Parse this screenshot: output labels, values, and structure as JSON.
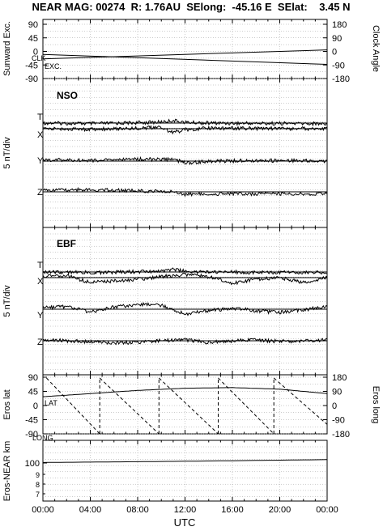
{
  "title": "NEAR MAG: 00274  R: 1.76AU  SElong:  -45.16 E  SElat:    3.45 N",
  "xaxis": {
    "label": "UTC",
    "ticks": [
      "00:00",
      "04:00",
      "08:00",
      "12:00",
      "16:00",
      "20:00",
      "00:00"
    ]
  },
  "chart_data": [
    {
      "type": "line",
      "ylabel_left": "Sunward Exc.",
      "ylabel_right": "Clock Angle",
      "yticks_left": [
        "90",
        "45",
        "0",
        "-45",
        "-90"
      ],
      "yticks_right": [
        "180",
        "90",
        "0",
        "-90",
        "-180"
      ],
      "ylim_left": [
        -90,
        90
      ],
      "ylim_right": [
        -180,
        180
      ],
      "series": [
        {
          "name": "CLK",
          "x": [
            0,
            24
          ],
          "y_right": [
            -50,
            10
          ]
        },
        {
          "name": "EXC.",
          "x": [
            0,
            24
          ],
          "y_left": [
            -10,
            -43
          ]
        }
      ]
    },
    {
      "type": "line",
      "name": "NSO",
      "ylabel": "5 nT/div",
      "series": [
        {
          "name": "T",
          "x": [
            0,
            4,
            8,
            10,
            11,
            12,
            14,
            18,
            24
          ],
          "y": [
            0,
            -0.2,
            0.1,
            0.3,
            0.8,
            0.2,
            0,
            -0.1,
            -0.2
          ]
        },
        {
          "name": "X",
          "x": [
            0,
            4,
            8,
            10,
            11,
            12,
            14,
            18,
            24
          ],
          "y": [
            0,
            -0.2,
            0.2,
            0.4,
            -1.2,
            -0.3,
            0.2,
            0.1,
            0
          ]
        },
        {
          "name": "Y",
          "x": [
            0,
            4,
            8,
            11,
            12,
            14,
            18,
            24
          ],
          "y": [
            0.4,
            0.2,
            0.6,
            0.5,
            -0.5,
            -0.1,
            0.2,
            0
          ]
        },
        {
          "name": "Z",
          "x": [
            0,
            4,
            8,
            11,
            12,
            14,
            18,
            24
          ],
          "y": [
            0.6,
            0.7,
            0.3,
            0,
            -0.8,
            -0.6,
            -0.6,
            -0.6
          ]
        }
      ]
    },
    {
      "type": "line",
      "name": "EBF",
      "ylabel": "5 nT/div",
      "series": [
        {
          "name": "T",
          "x": [
            0,
            4,
            8,
            10,
            11,
            12,
            14,
            18,
            24
          ],
          "y": [
            0,
            -0.2,
            0.1,
            0.3,
            0.8,
            0.2,
            0,
            -0.1,
            -0.2
          ]
        },
        {
          "name": "X",
          "x": [
            0,
            2,
            4,
            6,
            8,
            10,
            12,
            14,
            16,
            18,
            20,
            22,
            24
          ],
          "y": [
            0.5,
            0.6,
            -1.5,
            -1,
            -0.5,
            0.3,
            1,
            0.3,
            -1.8,
            -0.5,
            0,
            -1.5,
            0
          ]
        },
        {
          "name": "Y",
          "x": [
            0,
            2,
            4,
            6,
            8,
            10,
            12,
            14,
            16,
            18,
            20,
            22,
            24
          ],
          "y": [
            0.5,
            0.8,
            -0.8,
            0.6,
            1.5,
            1.2,
            -1.5,
            -0.5,
            0.3,
            -0.5,
            -1,
            -0.2,
            0.8
          ]
        },
        {
          "name": "Z",
          "x": [
            0,
            2,
            4,
            6,
            8,
            10,
            12,
            14,
            16,
            18,
            20,
            22,
            24
          ],
          "y": [
            0.3,
            0,
            -0.3,
            -0.6,
            -0.5,
            0,
            0.3,
            -0.5,
            0,
            0.2,
            -0.2,
            0,
            0.2
          ]
        }
      ]
    },
    {
      "type": "line",
      "ylabel_left": "Eros lat",
      "ylabel_right": "Eros long",
      "yticks_left": [
        "90",
        "45",
        "0",
        "-45",
        "-90"
      ],
      "yticks_right": [
        "180",
        "90",
        "0",
        "-90",
        "-180"
      ],
      "ylim_left": [
        -90,
        90
      ],
      "ylim_right": [
        -180,
        180
      ],
      "series": [
        {
          "name": "LAT",
          "x": [
            0,
            4,
            8,
            12,
            16,
            20,
            24
          ],
          "y_left": [
            28,
            38,
            48,
            55,
            57,
            52,
            38
          ]
        },
        {
          "name": "LONG",
          "x": [
            0.3,
            4.8,
            4.8,
            9.8,
            9.8,
            14.8,
            14.8,
            19.5,
            19.5,
            24
          ],
          "y_right": [
            175,
            -180,
            175,
            -180,
            175,
            -180,
            175,
            -180,
            175,
            -120
          ]
        }
      ]
    },
    {
      "type": "line",
      "ylabel": "Eros-NEAR km",
      "yscale": "log",
      "yticks": [
        "100",
        "9",
        "8",
        "7"
      ],
      "series": [
        {
          "name": "Eros-NEAR km",
          "x": [
            0,
            12,
            24
          ],
          "y": [
            100.5,
            101.8,
            103.5
          ]
        }
      ]
    }
  ]
}
